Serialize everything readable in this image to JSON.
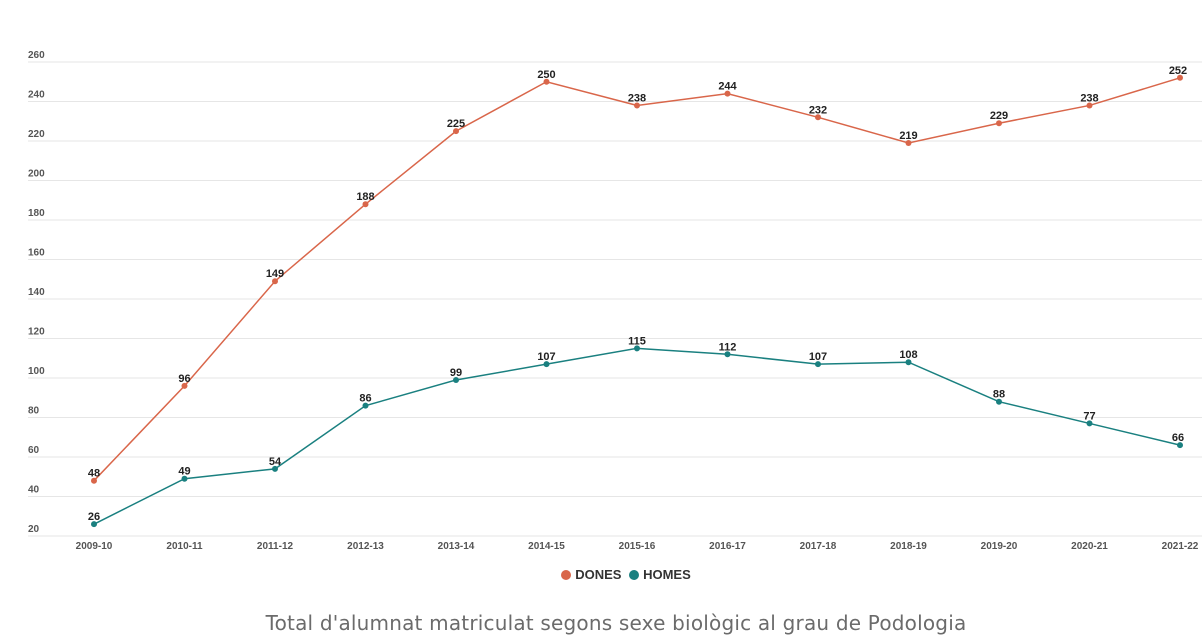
{
  "chart_data": {
    "type": "line",
    "categories": [
      "2009-10",
      "2010-11",
      "2011-12",
      "2012-13",
      "2013-14",
      "2014-15",
      "2015-16",
      "2016-17",
      "2017-18",
      "2018-19",
      "2019-20",
      "2020-21",
      "2021-22"
    ],
    "series": [
      {
        "name": "DONES",
        "color": "#d9664a",
        "values": [
          48,
          96,
          149,
          188,
          225,
          250,
          238,
          244,
          232,
          219,
          229,
          238,
          252
        ]
      },
      {
        "name": "HOMES",
        "color": "#1a8080",
        "values": [
          26,
          49,
          54,
          86,
          99,
          107,
          115,
          112,
          107,
          108,
          88,
          77,
          66
        ]
      }
    ],
    "y_ticks": [
      20,
      40,
      60,
      80,
      100,
      120,
      140,
      160,
      180,
      200,
      220,
      240,
      260
    ],
    "ylim": [
      20,
      260
    ],
    "grid": true,
    "legend_position": "bottom",
    "data_labels": true
  },
  "caption": "Total d'alumnat matriculat segons sexe biològic al grau de Podologia"
}
